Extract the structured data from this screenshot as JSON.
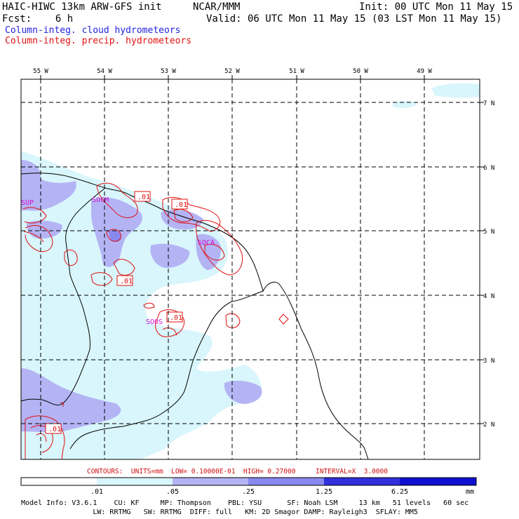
{
  "header": {
    "model": "HAIC-HIWC 13km ARW-GFS init",
    "org": "NCAR/MMM",
    "init": "Init: 00 UTC Mon 11 May 15",
    "fcst": "Fcst:    6 h",
    "valid": "Valid: 06 UTC Mon 11 May 15 (03 LST Mon 11 May 15)",
    "field_cloud": "Column-integ. cloud hydrometeors",
    "field_precip": "Column-integ. precip. hydrometeors"
  },
  "colors": {
    "cloud_title": "#2323e0",
    "precip": "#e01010",
    "shade1": "#d8f6fb",
    "shade2": "#b4b4f5",
    "shade3": "#8888ee",
    "shade4": "#5858e6",
    "shade5": "#3030dc",
    "shade6": "#1010d0"
  },
  "lon_labels": [
    "55 W",
    "54 W",
    "53 W",
    "52 W",
    "51 W",
    "50 W",
    "49 W"
  ],
  "lat_labels": [
    "7 N",
    "6 N",
    "5 N",
    "4 N",
    "3 N",
    "2 N"
  ],
  "map_labels": {
    "sup": "SUP",
    "socm": "SOCM",
    "soca": "SOCA",
    "soos": "SOOS",
    "val1": ".01",
    "val2": ".01",
    "val3": ".01",
    "val4": ".01",
    "val5": ".01"
  },
  "contours_line": "CONTOURS:  UNITS=mm  LOW= 0.10000E-01  HIGH= 0.27000     INTERVAL=X  3.0000",
  "colorbar": {
    "labels": [
      ".01",
      ".05",
      ".25",
      "1.25",
      "6.25"
    ],
    "units": "mm"
  },
  "footer": {
    "line1": "Model Info: V3.6.1    CU: KF     MP: Thompson    PBL: YSU      SF: Noah LSM     13 km   51 levels   60 sec",
    "line2": "                 LW: RRTMG   SW: RRTMG  DIFF: full   KM: 2D Smagor DAMP: Rayleigh3  SFLAY: MM5"
  }
}
